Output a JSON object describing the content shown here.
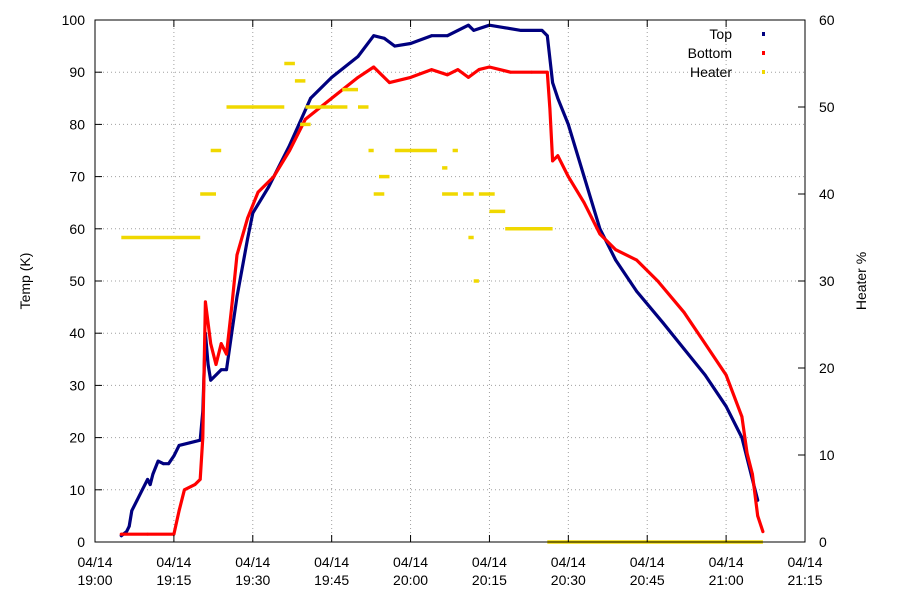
{
  "chart_data": {
    "type": "scatter",
    "title": "",
    "xlabel": "",
    "ylabel": "Temp (K)",
    "y2label": "Heater %",
    "ylim": [
      0,
      100
    ],
    "y2lim": [
      0,
      60
    ],
    "yticks": [
      "0",
      "10",
      "20",
      "30",
      "40",
      "50",
      "60",
      "70",
      "80",
      "90",
      "100"
    ],
    "y2ticks": [
      "0",
      "10",
      "20",
      "30",
      "40",
      "50",
      "60"
    ],
    "xlim": [
      "19:00",
      "21:15"
    ],
    "xticks": [
      {
        "date": "04/14",
        "time": "19:00"
      },
      {
        "date": "04/14",
        "time": "19:15"
      },
      {
        "date": "04/14",
        "time": "19:30"
      },
      {
        "date": "04/14",
        "time": "19:45"
      },
      {
        "date": "04/14",
        "time": "20:00"
      },
      {
        "date": "04/14",
        "time": "20:15"
      },
      {
        "date": "04/14",
        "time": "20:30"
      },
      {
        "date": "04/14",
        "time": "20:45"
      },
      {
        "date": "04/14",
        "time": "21:00"
      },
      {
        "date": "04/14",
        "time": "21:15"
      }
    ],
    "grid": true,
    "legend_position": "top-right",
    "series": [
      {
        "name": "Top",
        "axis": "left",
        "color": "#00007f",
        "points": [
          [
            "19:05",
            1.2
          ],
          [
            "19:06",
            2
          ],
          [
            "19:06.5",
            3
          ],
          [
            "19:07",
            6
          ],
          [
            "19:08",
            8
          ],
          [
            "19:09",
            10
          ],
          [
            "19:10",
            12
          ],
          [
            "19:10.5",
            11
          ],
          [
            "19:11",
            13
          ],
          [
            "19:12",
            15.5
          ],
          [
            "19:13",
            15
          ],
          [
            "19:14",
            15
          ],
          [
            "19:15",
            16.5
          ],
          [
            "19:16",
            18.5
          ],
          [
            "19:18",
            19
          ],
          [
            "19:20",
            19.5
          ],
          [
            "19:20.5",
            25
          ],
          [
            "19:21",
            40
          ],
          [
            "19:21.5",
            34
          ],
          [
            "19:22",
            31
          ],
          [
            "19:23",
            32
          ],
          [
            "19:24",
            33
          ],
          [
            "19:25",
            33
          ],
          [
            "19:26",
            40
          ],
          [
            "19:27",
            47
          ],
          [
            "19:29",
            58
          ],
          [
            "19:30",
            63
          ],
          [
            "19:33",
            68
          ],
          [
            "19:37",
            76
          ],
          [
            "19:41",
            85
          ],
          [
            "19:45",
            89
          ],
          [
            "19:50",
            93
          ],
          [
            "19:53",
            97
          ],
          [
            "19:55",
            96.5
          ],
          [
            "19:57",
            95
          ],
          [
            "20:00",
            95.5
          ],
          [
            "20:04",
            97
          ],
          [
            "20:07",
            97
          ],
          [
            "20:09",
            98
          ],
          [
            "20:11",
            99
          ],
          [
            "20:12",
            98
          ],
          [
            "20:15",
            99
          ],
          [
            "20:18",
            98.5
          ],
          [
            "20:21",
            98
          ],
          [
            "20:25",
            98
          ],
          [
            "20:26",
            97
          ],
          [
            "20:27",
            88
          ],
          [
            "20:28",
            85
          ],
          [
            "20:30",
            80
          ],
          [
            "20:33",
            70
          ],
          [
            "20:36",
            60
          ],
          [
            "20:39",
            54
          ],
          [
            "20:43",
            48
          ],
          [
            "20:48",
            42
          ],
          [
            "20:52",
            37
          ],
          [
            "20:56",
            32
          ],
          [
            "21:00",
            26
          ],
          [
            "21:03",
            20
          ],
          [
            "21:05",
            12
          ],
          [
            "21:06",
            8
          ]
        ]
      },
      {
        "name": "Bottom",
        "axis": "left",
        "color": "#ff0000",
        "points": [
          [
            "19:05",
            1.5
          ],
          [
            "19:10",
            1.5
          ],
          [
            "19:15",
            1.5
          ],
          [
            "19:16",
            6
          ],
          [
            "19:17",
            10
          ],
          [
            "19:19",
            11
          ],
          [
            "19:20",
            12
          ],
          [
            "19:20.5",
            20
          ],
          [
            "19:21",
            46
          ],
          [
            "19:22",
            38
          ],
          [
            "19:23",
            34
          ],
          [
            "19:24",
            38
          ],
          [
            "19:25",
            36
          ],
          [
            "19:26",
            45
          ],
          [
            "19:27",
            55
          ],
          [
            "19:29",
            62
          ],
          [
            "19:31",
            67
          ],
          [
            "19:34",
            70
          ],
          [
            "19:37",
            75
          ],
          [
            "19:40",
            81
          ],
          [
            "19:45",
            85
          ],
          [
            "19:50",
            89
          ],
          [
            "19:53",
            91
          ],
          [
            "19:56",
            88
          ],
          [
            "20:00",
            89
          ],
          [
            "20:04",
            90.5
          ],
          [
            "20:07",
            89.5
          ],
          [
            "20:09",
            90.5
          ],
          [
            "20:11",
            89
          ],
          [
            "20:13",
            90.5
          ],
          [
            "20:15",
            91
          ],
          [
            "20:19",
            90
          ],
          [
            "20:23",
            90
          ],
          [
            "20:26",
            90
          ],
          [
            "20:26.5",
            83
          ],
          [
            "20:27",
            73
          ],
          [
            "20:28",
            74
          ],
          [
            "20:30",
            70
          ],
          [
            "20:33",
            65
          ],
          [
            "20:36",
            59
          ],
          [
            "20:39",
            56
          ],
          [
            "20:43",
            54
          ],
          [
            "20:47",
            50
          ],
          [
            "20:52",
            44
          ],
          [
            "20:56",
            38
          ],
          [
            "21:00",
            32
          ],
          [
            "21:03",
            24
          ],
          [
            "21:04",
            17
          ],
          [
            "21:05",
            13
          ],
          [
            "21:06",
            5
          ],
          [
            "21:07",
            2
          ]
        ]
      },
      {
        "name": "Heater",
        "axis": "right",
        "color": "#f0d800",
        "segments": [
          [
            [
              "19:05",
              "19:20"
            ],
            35
          ],
          [
            [
              "19:20",
              "19:23"
            ],
            40
          ],
          [
            [
              "19:22",
              "19:24"
            ],
            45
          ],
          [
            [
              "19:25",
              "19:36"
            ],
            50
          ],
          [
            [
              "19:36",
              "19:38"
            ],
            55
          ],
          [
            [
              "19:38",
              "19:40"
            ],
            53
          ],
          [
            [
              "19:39",
              "19:41"
            ],
            48
          ],
          [
            [
              "19:40",
              "19:48"
            ],
            50
          ],
          [
            [
              "19:47",
              "19:50"
            ],
            52
          ],
          [
            [
              "19:50",
              "19:52"
            ],
            50
          ],
          [
            [
              "19:52",
              "19:53"
            ],
            45
          ],
          [
            [
              "19:53",
              "19:55"
            ],
            40
          ],
          [
            [
              "19:54",
              "19:56"
            ],
            42
          ],
          [
            [
              "19:57",
              "20:05"
            ],
            45
          ],
          [
            [
              "20:06",
              "20:07"
            ],
            43
          ],
          [
            [
              "20:06",
              "20:09"
            ],
            40
          ],
          [
            [
              "20:08",
              "20:09"
            ],
            45
          ],
          [
            [
              "20:10",
              "20:12"
            ],
            40
          ],
          [
            [
              "20:11",
              "20:12"
            ],
            35
          ],
          [
            [
              "20:12",
              "20:13"
            ],
            30
          ],
          [
            [
              "20:13",
              "20:16"
            ],
            40
          ],
          [
            [
              "20:15",
              "20:18"
            ],
            38
          ],
          [
            [
              "20:18",
              "20:27"
            ],
            36
          ],
          [
            [
              "20:26",
              "21:07"
            ],
            0
          ]
        ]
      }
    ]
  }
}
